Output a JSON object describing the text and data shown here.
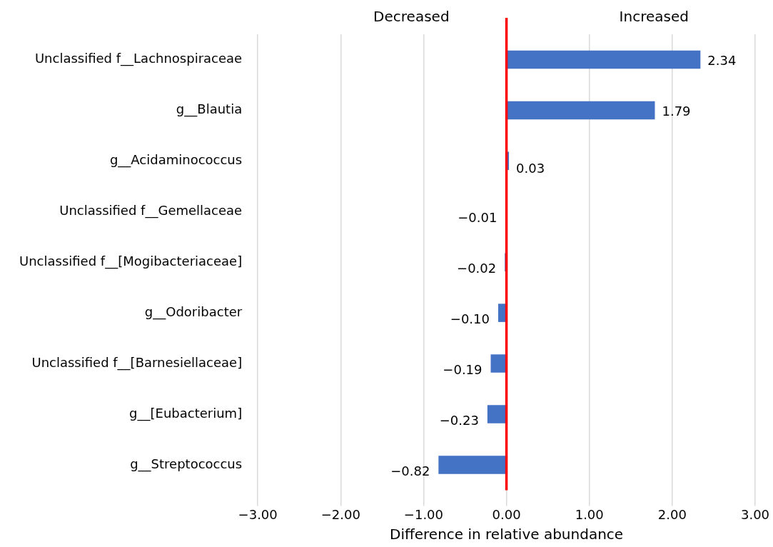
{
  "chart_data": {
    "type": "bar",
    "orientation": "horizontal",
    "xlabel": "Difference in relative abundance",
    "categories": [
      "Unclassified f__Lachnospiraceae",
      "g__Blautia",
      "g__Acidaminococcus",
      "Unclassified f__Gemellaceae",
      "Unclassified f__[Mogibacteriaceae]",
      "g__Odoribacter",
      "Unclassified f__[Barnesiellaceae]",
      "g__[Eubacterium]",
      "g__Streptococcus"
    ],
    "values": [
      2.34,
      1.79,
      0.03,
      -0.01,
      -0.02,
      -0.1,
      -0.19,
      -0.23,
      -0.82
    ],
    "value_labels": [
      "2.34",
      "1.79",
      "0.03",
      "−0.01",
      "−0.02",
      "−0.10",
      "−0.19",
      "−0.23",
      "−0.82"
    ],
    "color": "#4472c4",
    "xlim": [
      -3,
      3
    ],
    "xticks": [
      {
        "value": -3,
        "label": "−3.00"
      },
      {
        "value": -2,
        "label": "−2.00"
      },
      {
        "value": -1,
        "label": "−1.00"
      },
      {
        "value": 0,
        "label": "0.00"
      },
      {
        "value": 1,
        "label": "1.00"
      },
      {
        "value": 2,
        "label": "2.00"
      },
      {
        "value": 3,
        "label": "3.00"
      }
    ],
    "ref_lines": [
      {
        "axis": "x",
        "value": 0,
        "color": "#ff0000"
      }
    ],
    "annotations": [
      "Decreased",
      "Increased"
    ],
    "grid": "x",
    "legend": false
  }
}
